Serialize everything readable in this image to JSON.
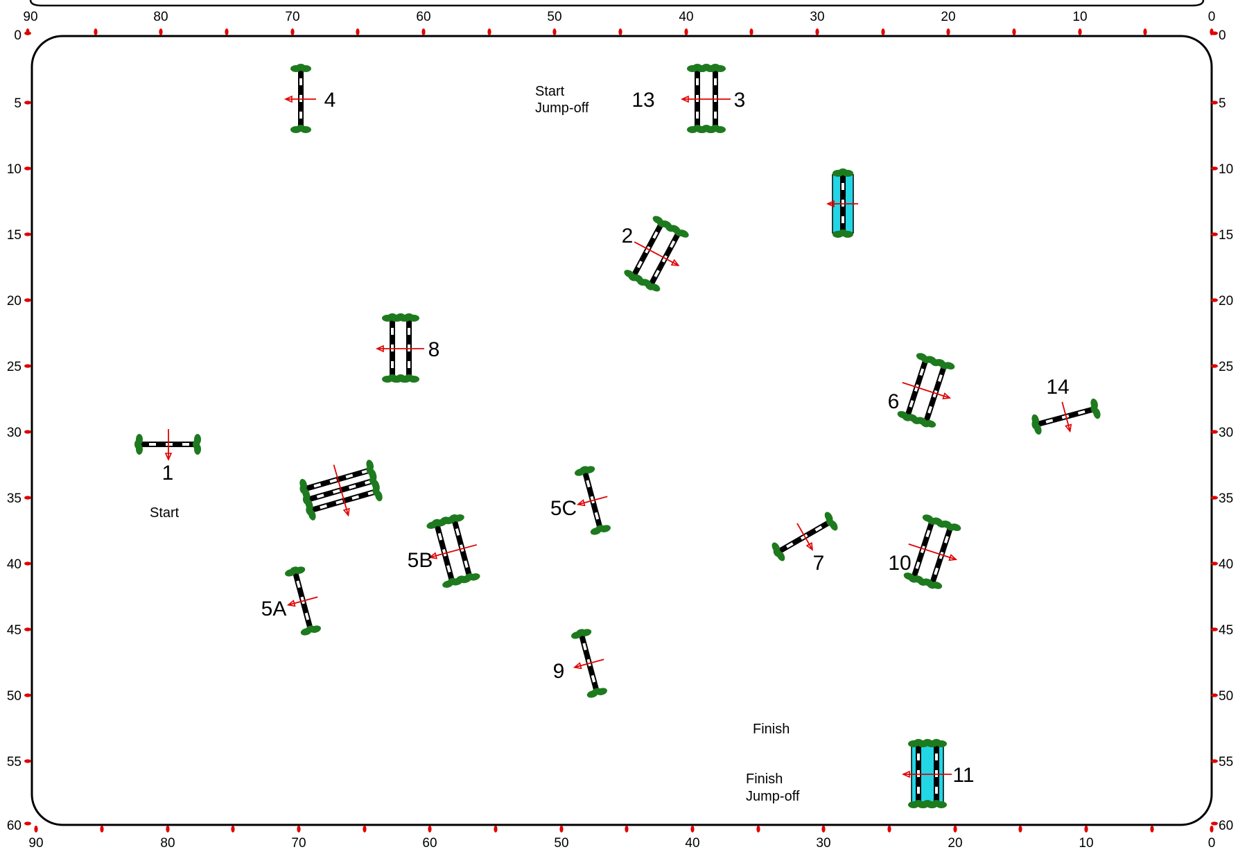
{
  "colors": {
    "arena_border": "#000000",
    "tick": "#e00000",
    "arrow": "#e00000",
    "bush": "#1e7a1e",
    "water": "#22d6e6",
    "pole_dark": "#000000",
    "pole_light": "#ffffff"
  },
  "ruler": {
    "x_labels": [
      "90",
      "80",
      "70",
      "60",
      "50",
      "40",
      "30",
      "20",
      "10",
      "0"
    ],
    "y_labels": [
      "0",
      "5",
      "10",
      "15",
      "20",
      "25",
      "30",
      "35",
      "40",
      "45",
      "50",
      "55",
      "60"
    ]
  },
  "zones": {
    "start": "Start",
    "start_jumpoff_line1": "Start",
    "start_jumpoff_line2": "Jump-off",
    "finish": "Finish",
    "finish_jumpoff_line1": "Finish",
    "finish_jumpoff_line2": "Jump-off"
  },
  "fences": [
    {
      "id": "1",
      "label": "1",
      "type": "vertical",
      "rails": 1,
      "water": false
    },
    {
      "id": "2",
      "label": "2",
      "type": "oxer",
      "rails": 2,
      "water": false
    },
    {
      "id": "3",
      "label": "3",
      "type": "oxer",
      "rails": 2,
      "water": false
    },
    {
      "id": "13",
      "label": "13",
      "type": "oxer",
      "rails": 2,
      "water": false
    },
    {
      "id": "4",
      "label": "4",
      "type": "vertical",
      "rails": 1,
      "water": false
    },
    {
      "id": "5A",
      "label": "5A",
      "type": "vertical",
      "rails": 1,
      "water": false
    },
    {
      "id": "5B",
      "label": "5B",
      "type": "oxer",
      "rails": 2,
      "water": false
    },
    {
      "id": "5C",
      "label": "5C",
      "type": "vertical",
      "rails": 1,
      "water": false
    },
    {
      "id": "6",
      "label": "6",
      "type": "oxer",
      "rails": 2,
      "water": false
    },
    {
      "id": "7",
      "label": "7",
      "type": "vertical",
      "rails": 1,
      "water": false
    },
    {
      "id": "8",
      "label": "8",
      "type": "oxer",
      "rails": 2,
      "water": false
    },
    {
      "id": "9",
      "label": "9",
      "type": "vertical",
      "rails": 1,
      "water": false
    },
    {
      "id": "10",
      "label": "10",
      "type": "oxer",
      "rails": 2,
      "water": false
    },
    {
      "id": "11",
      "label": "11",
      "type": "oxer",
      "rails": 2,
      "water": true
    },
    {
      "id": "14",
      "label": "14",
      "type": "vertical",
      "rails": 1,
      "water": false
    },
    {
      "id": "triple",
      "label": "",
      "type": "triple-bar",
      "rails": 3,
      "water": false
    },
    {
      "id": "liverpool",
      "label": "",
      "type": "vertical",
      "rails": 1,
      "water": true
    }
  ]
}
